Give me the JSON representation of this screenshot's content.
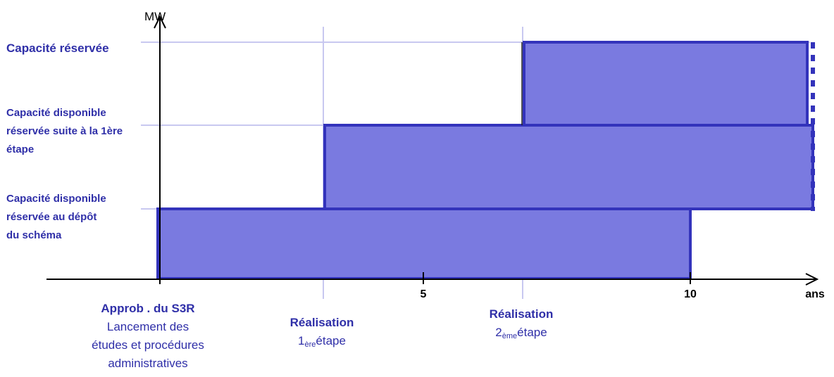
{
  "y_axis_label": "MW",
  "x_axis_label": "ans",
  "x_ticks": [
    "5",
    "10"
  ],
  "levels": {
    "reserved": "Capacité réservée",
    "after_stage1": [
      "Capacité disponible",
      "réservée suite à la 1ère",
      "étape"
    ],
    "at_filing": [
      "Capacité disponible",
      "réservée au dépôt",
      "du schéma"
    ]
  },
  "milestones": {
    "approval": {
      "title": "Approb . du S3R",
      "lines": [
        "Lancement des",
        "études et procédures",
        "administratives"
      ]
    },
    "stage1": {
      "title": "Réalisation",
      "num": "1",
      "sup": "ère",
      "word": "étape"
    },
    "stage2": {
      "title": "Réalisation",
      "num": "2",
      "sup": "ème",
      "word": "étape"
    }
  },
  "colors": {
    "block_fill": "#7a7ae0",
    "block_border": "#3333bb",
    "guide_lines": "#c8c8f0",
    "text_blue": "#2f2fa8"
  }
}
